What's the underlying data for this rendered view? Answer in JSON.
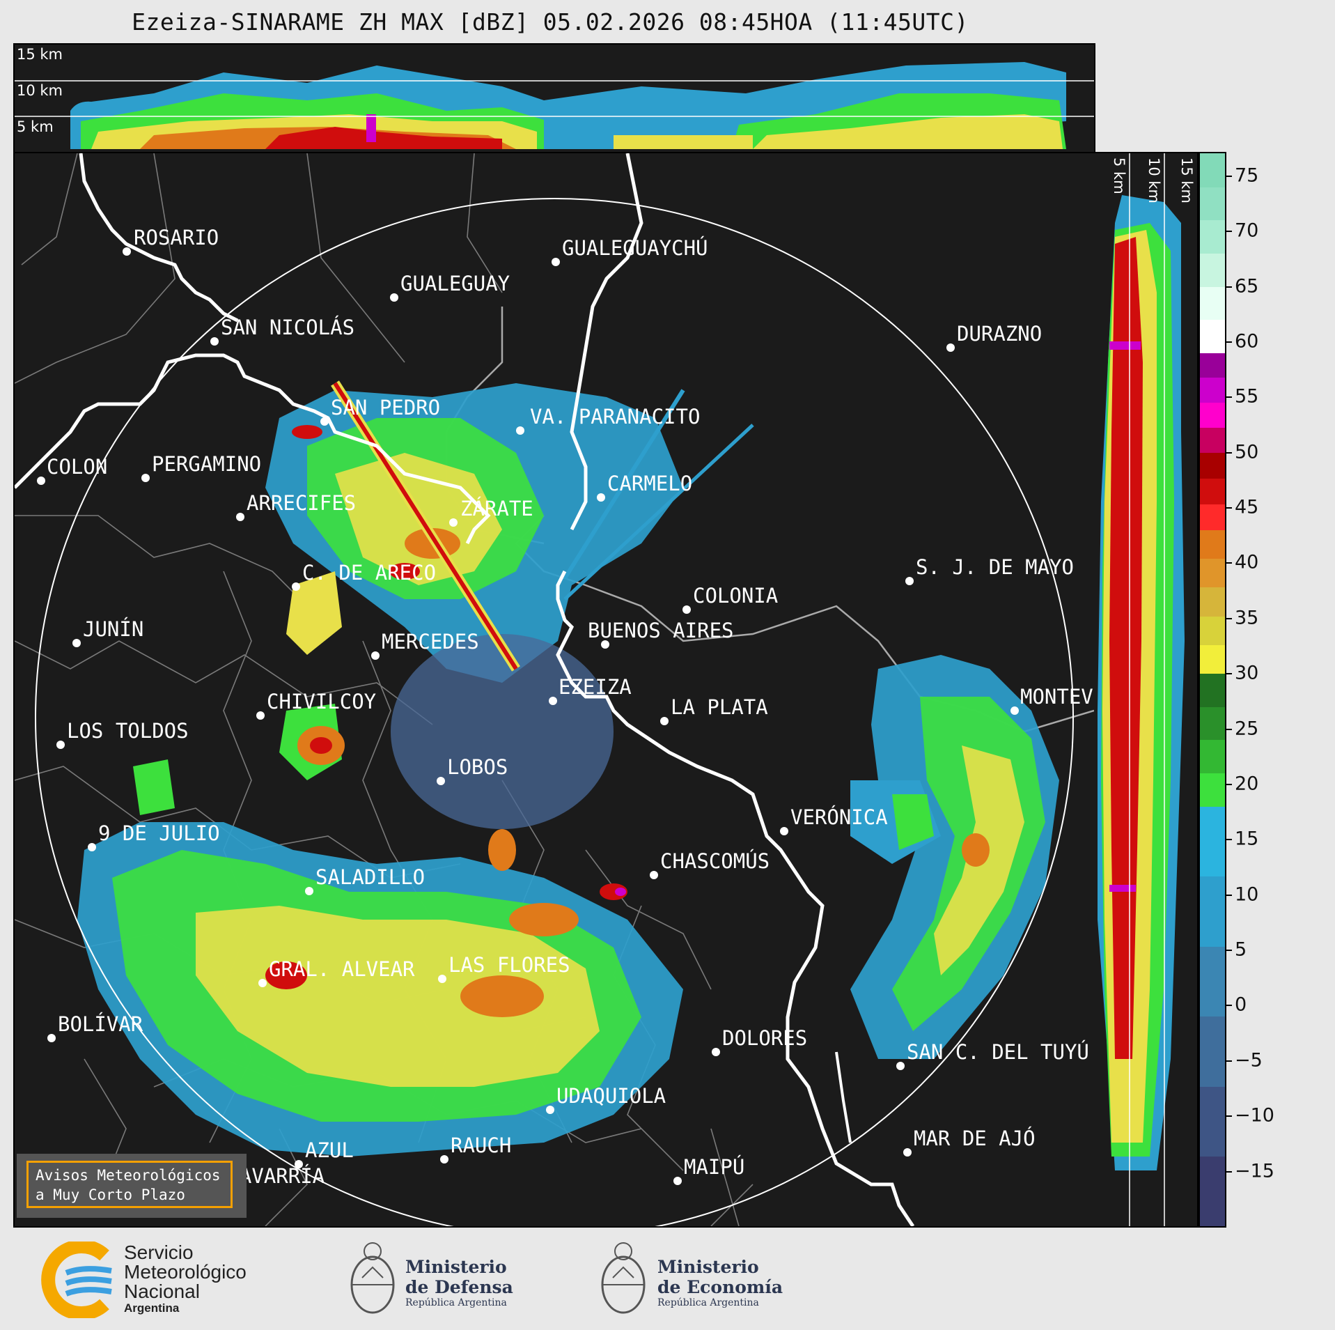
{
  "title": "Ezeiza-SINARAME ZH MAX [dBZ] 05.02.2026 08:45HOA (11:45UTC)",
  "top_panel": {
    "altitude_labels": [
      "15 km",
      "10 km",
      "5 km"
    ]
  },
  "side_panel": {
    "altitude_labels": [
      "5 km",
      "10 km",
      "15 km"
    ]
  },
  "colorbar": {
    "unit": "dBZ",
    "range": [
      -20,
      77
    ],
    "tick_labels": [
      "75",
      "70",
      "65",
      "60",
      "55",
      "50",
      "45",
      "40",
      "35",
      "30",
      "25",
      "20",
      "15",
      "10",
      "5",
      "0",
      "−5",
      "−10",
      "−15"
    ],
    "tick_values": [
      75,
      70,
      65,
      60,
      55,
      50,
      45,
      40,
      35,
      30,
      25,
      20,
      15,
      10,
      5,
      0,
      -5,
      -10,
      -15
    ],
    "bands": [
      {
        "from": -20,
        "to": 18,
        "colors": [
          "#3a3d6e",
          "#3e5585",
          "#3f6e9c",
          "#3b86b3",
          "#2e9fcd",
          "#2bb4df"
        ]
      },
      {
        "from": 18,
        "to": 30,
        "colors": [
          "#3de03d",
          "#33b833",
          "#2a902a",
          "#227222"
        ]
      },
      {
        "from": 30,
        "to": 43,
        "colors": [
          "#f2ee3a",
          "#d8d23a",
          "#d6b53a",
          "#e0952a",
          "#e07a1a"
        ]
      },
      {
        "from": 43,
        "to": 50,
        "colors": [
          "#ff2a2a",
          "#d00d0d",
          "#a80000"
        ]
      },
      {
        "from": 50,
        "to": 59,
        "colors": [
          "#c80060",
          "#ff00cc",
          "#cc00cc",
          "#990099"
        ]
      },
      {
        "from": 59,
        "to": 77,
        "colors": [
          "#ffffff",
          "#e8fff4",
          "#c8f5e0",
          "#a8ebd0",
          "#90e0c2",
          "#82dab8"
        ]
      }
    ]
  },
  "map": {
    "radar_station": "EZEIZA",
    "cities": [
      {
        "name": "ROSARIO"
      },
      {
        "name": "GUALEGUAYCHÚ"
      },
      {
        "name": "GUALEGUAY"
      },
      {
        "name": "SAN NICOLÁS"
      },
      {
        "name": "DURAZNO"
      },
      {
        "name": "SAN PEDRO"
      },
      {
        "name": "VA. PARANACITO"
      },
      {
        "name": "COLON"
      },
      {
        "name": "PERGAMINO"
      },
      {
        "name": "CARMELO"
      },
      {
        "name": "ARRECIFES"
      },
      {
        "name": "ZÁRATE"
      },
      {
        "name": "S. J. DE MAYO"
      },
      {
        "name": "C. DE ARECO"
      },
      {
        "name": "COLONIA"
      },
      {
        "name": "JUNÍN"
      },
      {
        "name": "BUENOS AIRES"
      },
      {
        "name": "MERCEDES"
      },
      {
        "name": "MONTEV"
      },
      {
        "name": "EZEIZA"
      },
      {
        "name": "CHIVILCOY"
      },
      {
        "name": "LA PLATA"
      },
      {
        "name": "LOS TOLDOS"
      },
      {
        "name": "LOBOS"
      },
      {
        "name": "VERÓNICA"
      },
      {
        "name": "9 DE JULIO"
      },
      {
        "name": "CHASCOMÚS"
      },
      {
        "name": "SALADILLO"
      },
      {
        "name": "GRAL. ALVEAR"
      },
      {
        "name": "LAS FLORES"
      },
      {
        "name": "BOLÍVAR"
      },
      {
        "name": "DOLORES"
      },
      {
        "name": "SAN C. DEL TUYÚ"
      },
      {
        "name": "UDAQUIOLA"
      },
      {
        "name": "AZUL"
      },
      {
        "name": "RAUCH"
      },
      {
        "name": "MAR DE AJÓ"
      },
      {
        "name": "MAIPÚ"
      },
      {
        "name": "OLAVARRÍA"
      }
    ]
  },
  "avisos": {
    "line1": "Avisos Meteorológicos",
    "line2": "a Muy Corto Plazo"
  },
  "footer": {
    "smn": {
      "line1": "Servicio",
      "line2": "Meteorológico",
      "line3": "Nacional",
      "line4": "Argentina"
    },
    "defensa": {
      "line1": "Ministerio",
      "line2": "de Defensa",
      "line3": "República Argentina"
    },
    "economia": {
      "line1": "Ministerio",
      "line2": "de Economía",
      "line3": "República Argentina"
    }
  }
}
